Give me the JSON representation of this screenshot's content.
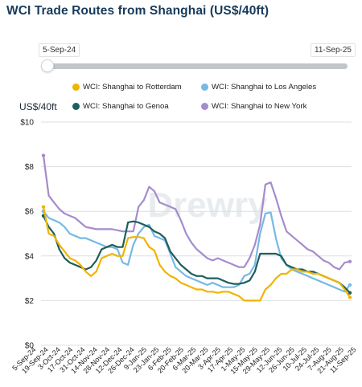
{
  "title": "WCI Trade Routes from Shanghai (US$/40ft)",
  "range": {
    "start_label": "5-Sep-24",
    "end_label": "11-Sep-25"
  },
  "watermark": "Drewry",
  "chart_data": {
    "type": "line",
    "ylabel": "US$/40ft",
    "ylim": [
      0,
      10
    ],
    "yticks": [
      "$0",
      "$2",
      "$4",
      "$6",
      "$8",
      "$10"
    ],
    "grid": true,
    "legend_position": "top",
    "x_tick_labels": [
      "5-Sep-24",
      "19-Sep-24",
      "3-Oct-24",
      "17-Oct-24",
      "31-Oct-24",
      "14-Nov-24",
      "28-Nov-24",
      "12-Dec-24",
      "26-Dec-24",
      "9-Jan-25",
      "23-Jan-25",
      "6-Feb-25",
      "20-Feb-25",
      "6-Mar-25",
      "20-Mar-25",
      "3-Apr-25",
      "17-Apr-25",
      "1-May-25",
      "15-May-25",
      "29-May-25",
      "12-Jun-25",
      "26-Jun-25",
      "10-Jul-25",
      "24-Jul-25",
      "7-Aug-25",
      "21-Aug-25",
      "11-Sep-25"
    ],
    "series": [
      {
        "name": "WCI: Shanghai to Rotterdam",
        "color": "#f0b400",
        "values": [
          6.2,
          5.0,
          4.9,
          4.5,
          4.2,
          3.9,
          3.8,
          3.6,
          3.3,
          3.1,
          3.3,
          3.9,
          4.0,
          4.1,
          4.0,
          4.0,
          4.8,
          4.85,
          4.85,
          4.8,
          4.4,
          4.25,
          3.6,
          3.3,
          3.1,
          3.0,
          2.8,
          2.7,
          2.6,
          2.5,
          2.5,
          2.4,
          2.4,
          2.35,
          2.4,
          2.4,
          2.3,
          2.2,
          2.0,
          2.0,
          2.0,
          2.0,
          2.5,
          2.7,
          3.0,
          3.2,
          3.2,
          3.4,
          3.4,
          3.3,
          3.3,
          3.2,
          3.2,
          3.1,
          3.0,
          2.9,
          2.8,
          2.5,
          2.15
        ]
      },
      {
        "name": "WCI: Shanghai to Los Angeles",
        "color": "#76b9e3",
        "values": [
          6.0,
          5.7,
          5.6,
          5.5,
          5.3,
          5.0,
          4.9,
          4.8,
          4.8,
          4.7,
          4.6,
          4.5,
          4.4,
          4.4,
          4.3,
          3.7,
          3.6,
          4.5,
          5.0,
          5.3,
          5.4,
          4.9,
          4.8,
          4.7,
          4.1,
          3.5,
          3.3,
          3.1,
          3.0,
          2.9,
          2.8,
          2.7,
          2.8,
          2.7,
          2.6,
          2.6,
          2.6,
          2.7,
          3.1,
          3.2,
          3.6,
          5.0,
          5.9,
          5.95,
          4.8,
          3.9,
          3.6,
          3.4,
          3.3,
          3.2,
          3.1,
          3.0,
          2.9,
          2.8,
          2.7,
          2.6,
          2.5,
          2.4,
          2.7
        ]
      },
      {
        "name": "WCI: Shanghai to Genoa",
        "color": "#1e5e5c",
        "values": [
          5.8,
          5.3,
          5.0,
          4.3,
          3.9,
          3.7,
          3.6,
          3.5,
          3.4,
          3.5,
          3.8,
          4.3,
          4.4,
          4.5,
          4.4,
          4.4,
          5.5,
          5.55,
          5.5,
          5.4,
          5.3,
          5.1,
          5.0,
          4.8,
          4.2,
          3.9,
          3.6,
          3.4,
          3.2,
          3.1,
          3.1,
          3.0,
          3.0,
          3.0,
          2.9,
          2.8,
          2.75,
          2.75,
          2.8,
          2.9,
          3.3,
          4.1,
          4.1,
          4.1,
          4.1,
          4.0,
          3.6,
          3.5,
          3.4,
          3.4,
          3.3,
          3.3,
          3.2,
          3.1,
          3.0,
          2.9,
          2.8,
          2.6,
          2.35
        ]
      },
      {
        "name": "WCI: Shanghai to New York",
        "color": "#a58ccc",
        "values": [
          8.5,
          6.7,
          6.4,
          6.1,
          5.9,
          5.8,
          5.7,
          5.5,
          5.3,
          5.25,
          5.2,
          5.2,
          5.2,
          5.2,
          5.15,
          5.1,
          5.1,
          5.1,
          6.2,
          6.5,
          7.1,
          6.9,
          6.4,
          6.3,
          6.2,
          6.1,
          5.6,
          5.0,
          4.6,
          4.3,
          4.1,
          3.9,
          3.8,
          3.9,
          3.8,
          3.7,
          3.6,
          3.5,
          3.5,
          3.9,
          4.5,
          5.4,
          7.2,
          7.3,
          6.6,
          5.8,
          5.1,
          4.9,
          4.7,
          4.5,
          4.3,
          4.2,
          4.0,
          3.8,
          3.7,
          3.5,
          3.4,
          3.7,
          3.75
        ]
      }
    ]
  }
}
